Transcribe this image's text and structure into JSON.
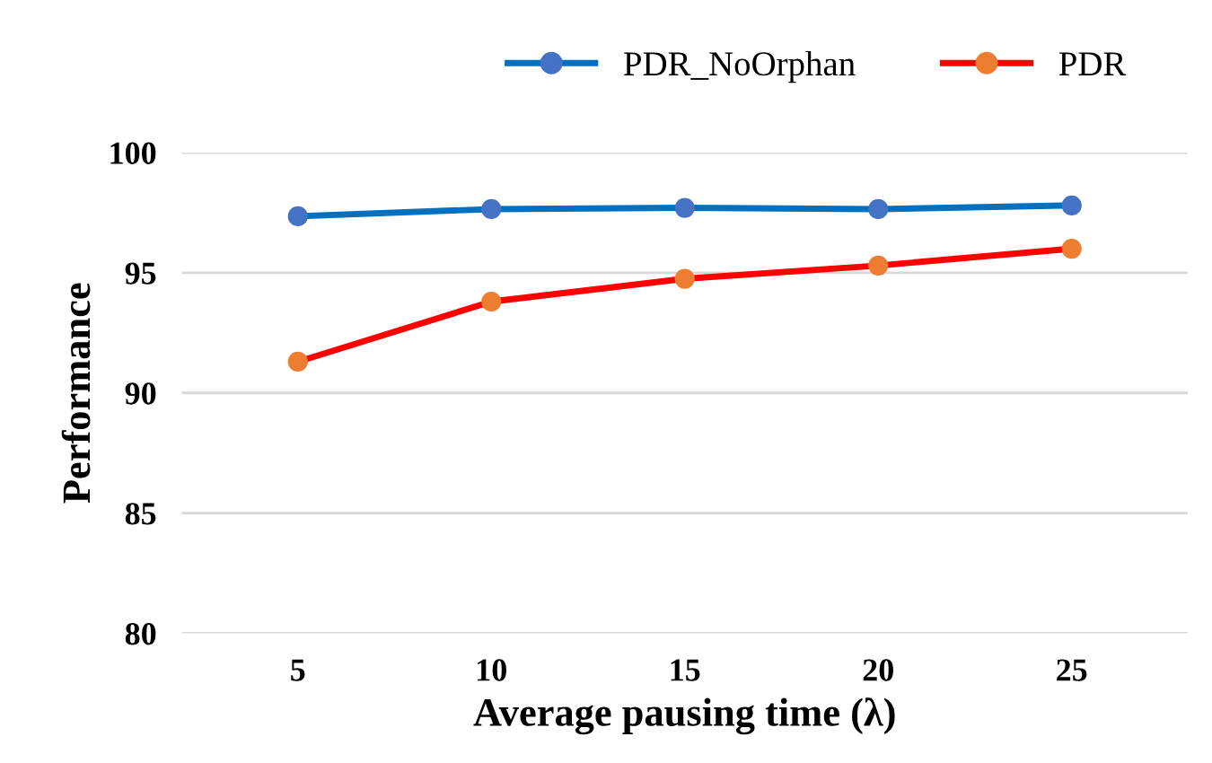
{
  "chart_data": {
    "type": "line",
    "xlabel": "Average pausing time (λ)",
    "ylabel": "Performance",
    "categories": [
      "5",
      "10",
      "15",
      "20",
      "25"
    ],
    "series": [
      {
        "name": "PDR_NoOrphan",
        "color": "#0070c0",
        "colors": [
          "#4472c4",
          "#4472c4",
          "#4472c4",
          "#4472c4",
          "#4472c4"
        ],
        "values": [
          97.35,
          97.65,
          97.7,
          97.65,
          97.8
        ]
      },
      {
        "name": "PDR",
        "color": "#ff0000",
        "colors": [
          "#ed7d31",
          "#ed7d31",
          "#ed7d31",
          "#ed7d31",
          "#ed7d31"
        ],
        "values": [
          91.3,
          93.8,
          94.75,
          95.3,
          96.0
        ]
      }
    ],
    "ylim": [
      80,
      100
    ],
    "yticks": [
      80,
      85,
      90,
      95,
      100
    ],
    "grid": "y",
    "legend": "top right",
    "marker": "circle",
    "line_style": "solid"
  }
}
